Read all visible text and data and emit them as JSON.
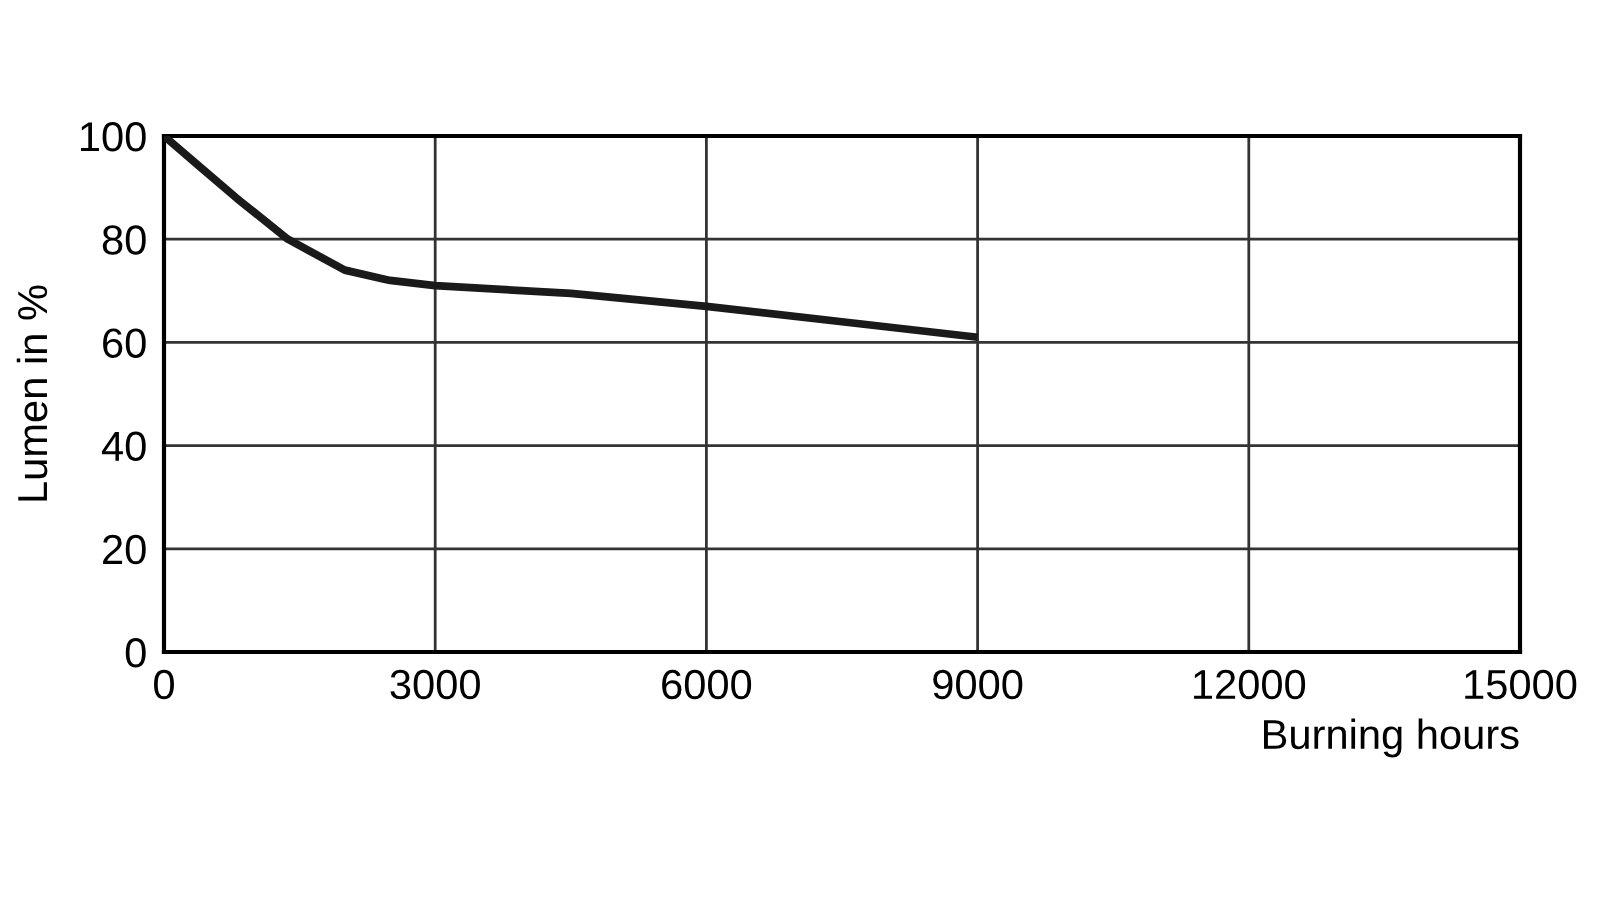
{
  "chart_data": {
    "type": "line",
    "xlabel": "Burning hours",
    "ylabel": "Lumen in %",
    "x": [
      0,
      400,
      800,
      1370,
      2000,
      2500,
      3000,
      4500,
      6000,
      7500,
      9000
    ],
    "series": [
      {
        "color": "#1a1a1a",
        "values": [
          100,
          94,
          88,
          80,
          74,
          72,
          71,
          69.5,
          67,
          64,
          61
        ]
      }
    ],
    "xlim": [
      0,
      15000
    ],
    "xticks": [
      0,
      3000,
      6000,
      9000,
      12000,
      15000
    ],
    "ylim": [
      0,
      100
    ],
    "yticks": [
      0,
      20,
      40,
      60,
      80,
      100
    ],
    "grid": true,
    "marker": "none",
    "line_style": "solid"
  }
}
